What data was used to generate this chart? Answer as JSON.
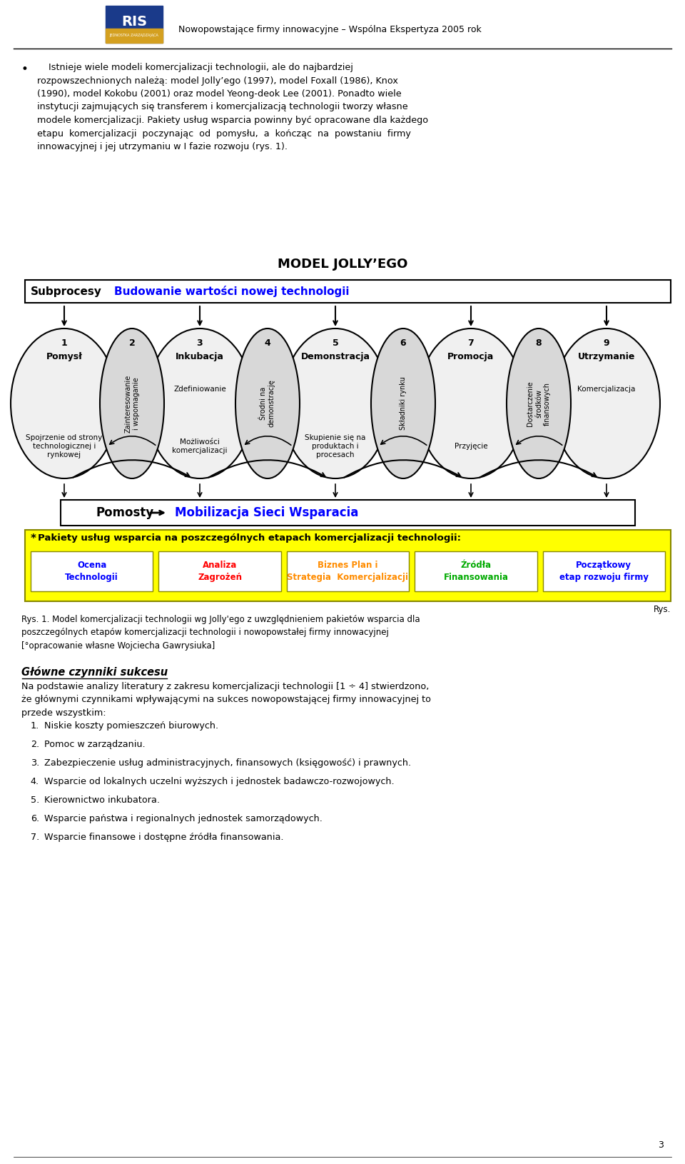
{
  "page_width": 9.6,
  "page_height": 16.3,
  "bg_color": "#ffffff",
  "header_text": "Nowopowstające firmy innowacyjne – Wspólna Ekspertyza 2005 rok",
  "paragraph1": "Istnieje wiele modeli komercjalizacji technologii, ale do najbardziej rozpowszechnionych należą: model Jolly’ego (1997), model Foxall (1986), Knox (1990), model Kokobu (2001) oraz model Yeong-deok Lee (2001). Ponadto wiele instytucji zajmujących się transferem i komercjalizacją technologii tworzy własne modele komercjalizacji. Pakiety usług wsparcia powinny być opracowane dla każdego etapu komercjalizacji poczynając od pomysłu, a kończąc na powstaniu firmy innowacyjnej i jej utrzymaniu w I fazie rozwoju (rys. 1).",
  "diagram_title": "MODEL JOLLY’EGO",
  "subprocesy_label": "Subprocesy",
  "subprocesy_blue": "Budowanie wartości nowej technologii",
  "pomosty_label": "Pomosty",
  "pomosty_blue": "Mobilizacja Sieci Wsparacia",
  "nodes_odd": [
    {
      "num": "1",
      "name": "Pomysł",
      "bottom": "Spojrzenie od strony\ntechnologicznej i\nrynkowej"
    },
    {
      "num": "3",
      "name": "Inkubacja",
      "sub": "Zdefiniowanie",
      "bottom": "Możliwości\nkomercjalizacji"
    },
    {
      "num": "5",
      "name": "Demonstracja",
      "bottom": "Skupienie się na\nproduktach i\nprocesach"
    },
    {
      "num": "7",
      "name": "Promocja",
      "bottom": "Przyjęcie"
    },
    {
      "num": "9",
      "name": "Utrzymanie",
      "sub": "Komercjalizacja",
      "bottom": ""
    }
  ],
  "nodes_even": [
    {
      "num": "2",
      "name": "Zainteresowanie\ni wspomaganie"
    },
    {
      "num": "4",
      "name": "Środni na\ndemonstrację"
    },
    {
      "num": "6",
      "name": "Składniki rynku"
    },
    {
      "num": "8",
      "name": "Dostarczenie\nśrodków\nfinansowych"
    }
  ],
  "yellow_box_title": "*Pakiety usług wsparcia na poszczególnych etapach komercjalizacji technologii:",
  "service_boxes": [
    {
      "text": "Ocena\nTechnologii",
      "color": "#0000ff"
    },
    {
      "text": "Analiza\nZagrożeń",
      "color": "#ff0000"
    },
    {
      "text": "Biznes Plan i\nStrategia  Komercjalizacji",
      "color": "#ff8c00"
    },
    {
      "text": "Źródła\nFinansowania",
      "color": "#00aa00"
    },
    {
      "text": "Początkowy\netap rozwoju firmy",
      "color": "#0000ff"
    }
  ],
  "rys_caption": "Rys. 1. Model komercjalizacji technologii wg Jolly'ego z uwzględnieniem pakietów wsparcia dla poszczególnych etapów komercjalizacji technologii i nowopowstałej firmy innowacyjnej\n[°opracowanie własne Wojciecha Gawrysiuka]",
  "main_heading": "Główne czynniki sukcesu",
  "intro_text": "Na podstawie analizy literatury z zakresu komercjalizacji technologii [1 ÷ 4] stwierdzono,\nże głównymi czynnikami wpływającymi na sukces nowopowstającej firmy innowacyjnej to\nprzede wszystkim:",
  "list_items": [
    "Niskie koszty pomieszczeń biurowych.",
    "Pomoc w zarządzaniu.",
    "Zabezpieczenie usług administracyjnych, finansowych (księgowość) i prawnych.",
    "Wsparcie od lokalnych uczelni wyższych i jednostek badawczo-rozwojowych.",
    "Kierownictwo inkubatora.",
    "Wsparcie państwa i regionalnych jednostek samorządowych.",
    "Wsparcie finansowe i dostępne źródła finansowania."
  ],
  "page_num": "3"
}
